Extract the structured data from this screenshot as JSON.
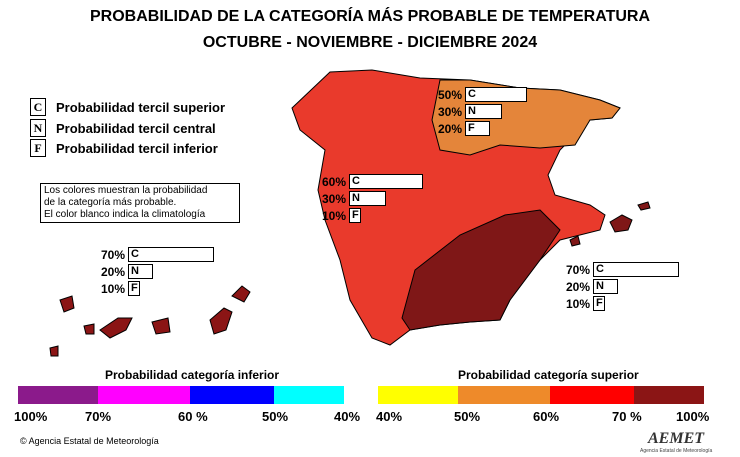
{
  "title_line1": "PROBABILIDAD DE LA CATEGORÍA MÁS PROBABLE DE TEMPERATURA",
  "title_line2": "OCTUBRE - NOVIEMBRE - DICIEMBRE 2024",
  "legend": [
    {
      "letter": "C",
      "label": "Probabilidad  tercil superior"
    },
    {
      "letter": "N",
      "label": "Probabilidad  tercil central"
    },
    {
      "letter": "F",
      "label": "Probabilidad  tercil inferior"
    }
  ],
  "note": {
    "line1": "Los colores muestran la probabilidad",
    "line2": "de la categoría más probable.",
    "line3": "El color blanco indica la climatología"
  },
  "regions": [
    {
      "name": "north-coast",
      "color": "#e4853a",
      "C": 50,
      "N": 30,
      "F": 20
    },
    {
      "name": "center",
      "color": "#e93a2c",
      "C": 60,
      "N": 30,
      "F": 10
    },
    {
      "name": "canary-islands",
      "color": "#8b1515",
      "C": 70,
      "N": 20,
      "F": 10
    },
    {
      "name": "southeast-balearic",
      "color": "#7f1717",
      "C": 70,
      "N": 20,
      "F": 10
    }
  ],
  "labels": {
    "c": "C",
    "n": "N",
    "f": "F"
  },
  "scale_lower": {
    "title": "Probabilidad categoría inferior",
    "colors": [
      "#8b1a8b",
      "#ff00ff",
      "#0000ff",
      "#00ffff"
    ],
    "ticks": [
      "100%",
      "70%",
      "60 %",
      "50%",
      "40%"
    ]
  },
  "scale_upper": {
    "title": "Probabilidad categoría superior",
    "colors": [
      "#ffff00",
      "#ee8a2a",
      "#ff0000",
      "#8b1515"
    ],
    "ticks": [
      "40%",
      "50%",
      "60%",
      "70 %",
      "100%"
    ]
  },
  "footer": "© Agencia Estatal de Meteorología",
  "logo": "AEMET",
  "logo_sub": "Agencia Estatal de Meteorología"
}
